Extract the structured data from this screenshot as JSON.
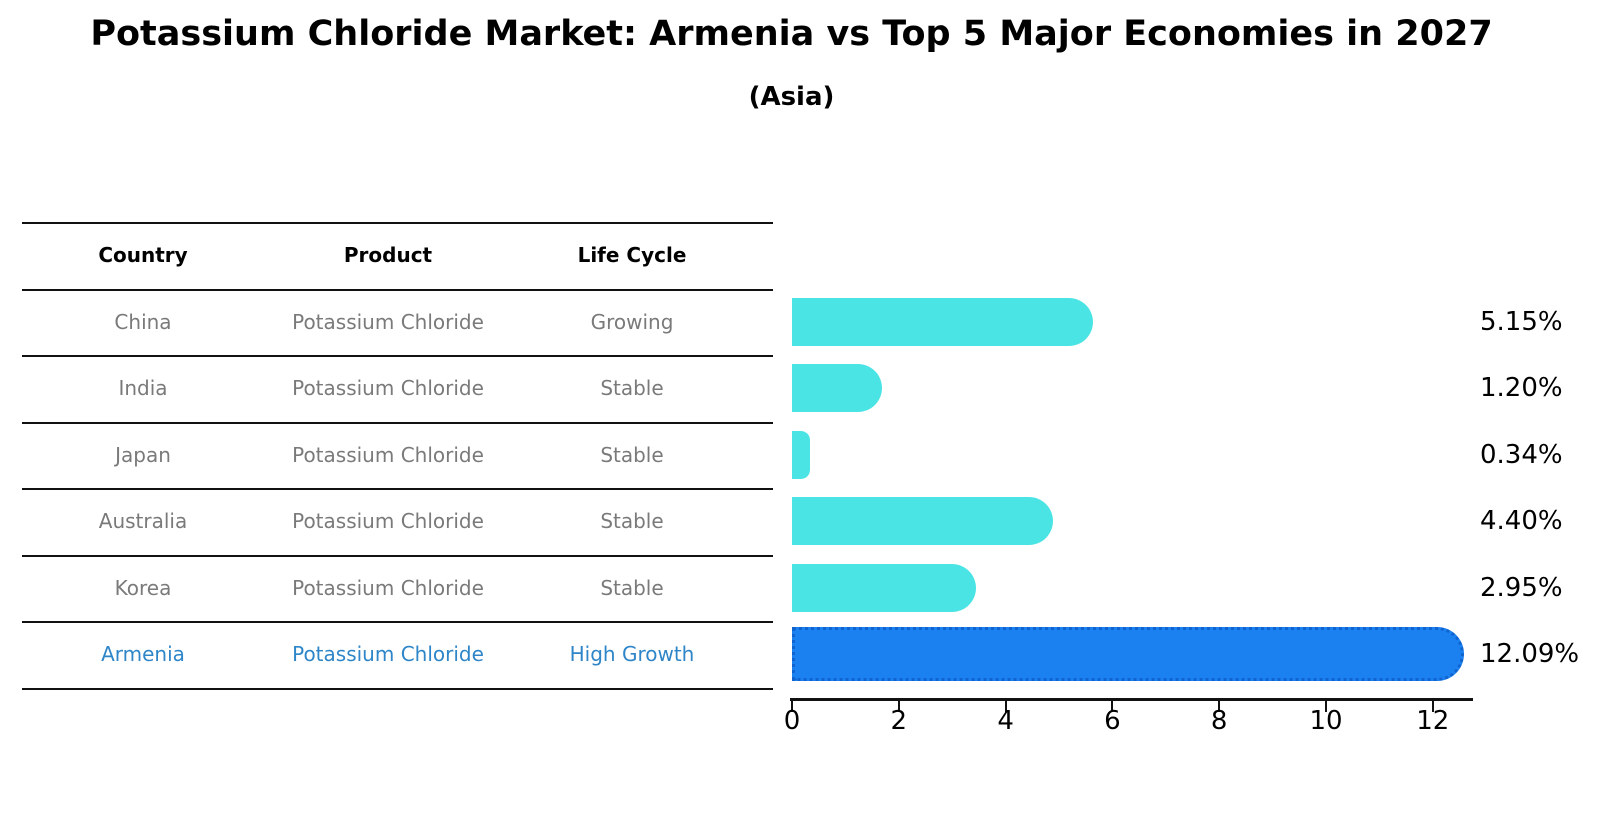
{
  "header": {
    "title": "Potassium Chloride Market: Armenia vs Top 5 Major Economies in 2027",
    "subtitle": "(Asia)"
  },
  "table": {
    "columns": [
      "Country",
      "Product",
      "Life Cycle"
    ],
    "rows": [
      {
        "country": "China",
        "product": "Potassium Chloride",
        "life_cycle": "Growing",
        "highlight": false
      },
      {
        "country": "India",
        "product": "Potassium Chloride",
        "life_cycle": "Stable",
        "highlight": false
      },
      {
        "country": "Japan",
        "product": "Potassium Chloride",
        "life_cycle": "Stable",
        "highlight": false
      },
      {
        "country": "Australia",
        "product": "Potassium Chloride",
        "life_cycle": "Stable",
        "highlight": false
      },
      {
        "country": "Korea",
        "product": "Potassium Chloride",
        "life_cycle": "Stable",
        "highlight": false
      },
      {
        "country": "Armenia",
        "product": "Potassium Chloride",
        "life_cycle": "High Growth",
        "highlight": true
      }
    ]
  },
  "chart_data": {
    "type": "bar",
    "orientation": "horizontal",
    "title": "Potassium Chloride Market: Armenia vs Top 5 Major Economies in 2027",
    "subtitle": "(Asia)",
    "categories": [
      "China",
      "India",
      "Japan",
      "Australia",
      "Korea",
      "Armenia"
    ],
    "values": [
      5.15,
      1.2,
      0.34,
      4.4,
      2.95,
      12.09
    ],
    "value_labels": [
      "5.15%",
      "1.20%",
      "0.34%",
      "4.40%",
      "2.95%",
      "12.09%"
    ],
    "xlabel": "",
    "ylabel": "",
    "xlim": [
      0,
      12.77
    ],
    "x_ticks": [
      0,
      2,
      4,
      6,
      8,
      10,
      12
    ],
    "grid": false,
    "legend": null,
    "highlight_index": 5,
    "colors": {
      "bar": "#4be4e4",
      "highlight_bar": "#1b80f0",
      "highlight_bar_border": "#0f64cf",
      "highlight_text": "#2e86c9",
      "row_text": "#7a7a7a",
      "header_text": "#000000",
      "line": "#111111"
    }
  }
}
